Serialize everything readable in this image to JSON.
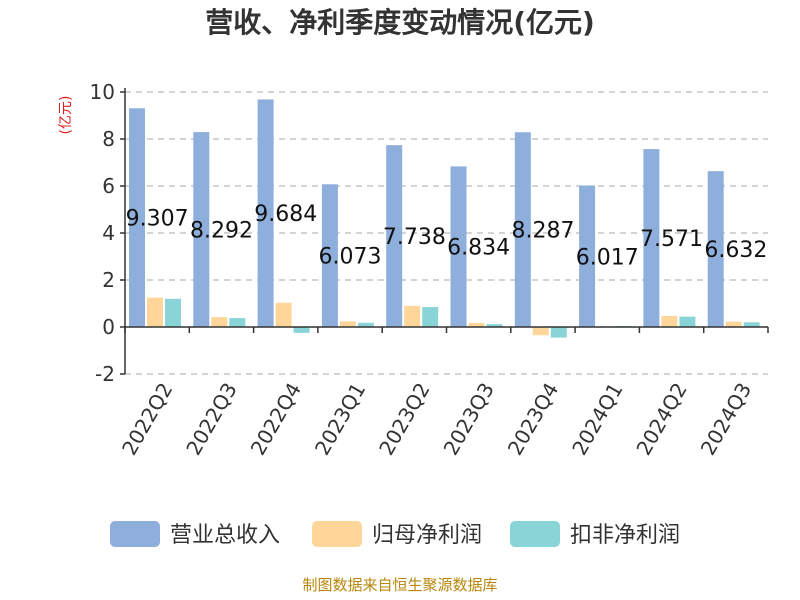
{
  "chart_data": {
    "type": "bar",
    "title": "营收、净利季度变动情况(亿元)",
    "ylabel": "(亿元)",
    "ylim": [
      -2,
      10
    ],
    "yticks": [
      -2,
      0,
      2,
      4,
      6,
      8,
      10
    ],
    "grid": true,
    "legend_position": "bottom",
    "categories": [
      "2022Q2",
      "2022Q3",
      "2022Q4",
      "2023Q1",
      "2023Q2",
      "2023Q3",
      "2023Q4",
      "2024Q1",
      "2024Q2",
      "2024Q3"
    ],
    "series": [
      {
        "name": "营业总收入",
        "color": "#8eaedc",
        "values": [
          9.307,
          8.292,
          9.684,
          6.073,
          7.738,
          6.834,
          8.287,
          6.017,
          7.571,
          6.632
        ],
        "labels": [
          "9.307",
          "8.292",
          "9.684",
          "6.073",
          "7.738",
          "6.834",
          "8.287",
          "6.017",
          "7.571",
          "6.632"
        ]
      },
      {
        "name": "归母净利润",
        "color": "#ffd699",
        "values": [
          1.25,
          0.42,
          1.03,
          0.24,
          0.9,
          0.17,
          -0.35,
          0.02,
          0.47,
          0.23
        ]
      },
      {
        "name": "扣非净利润",
        "color": "#88d4d6",
        "values": [
          1.2,
          0.38,
          -0.25,
          0.18,
          0.85,
          0.12,
          -0.45,
          0.04,
          0.44,
          0.2
        ]
      }
    ]
  },
  "footer": {
    "source": "制图数据来自恒生聚源数据库"
  }
}
